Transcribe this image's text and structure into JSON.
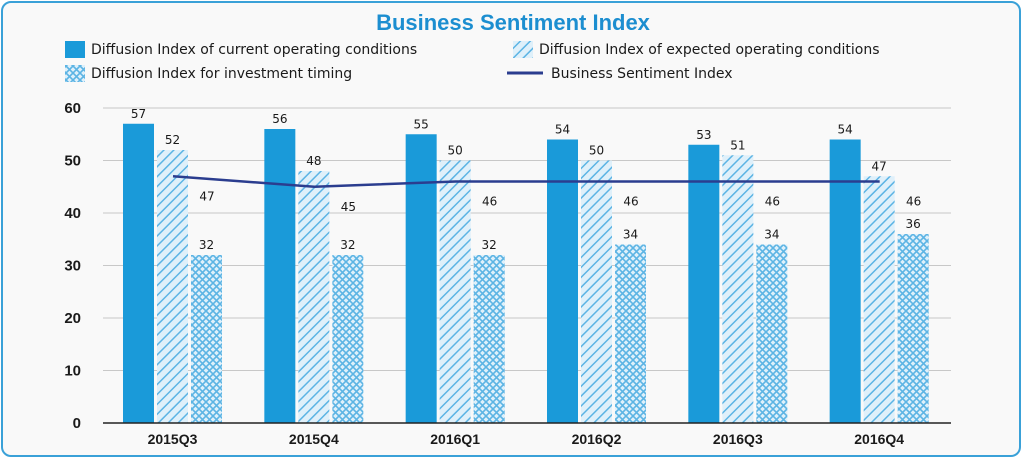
{
  "colors": {
    "frame": "#3aa1d8",
    "current": "#1a9ad9",
    "hatch": "#5cb4e4",
    "hatch_bg": "#dff0fa",
    "line": "#2b3d8f",
    "grid": "#c8c8c8",
    "title": "#1c8ed0"
  },
  "chart_data": {
    "type": "bar",
    "title": "Business Sentiment Index",
    "xlabel": "",
    "ylabel": "",
    "ylim": [
      0,
      60
    ],
    "yticks": [
      0,
      10,
      20,
      30,
      40,
      50,
      60
    ],
    "grid": true,
    "legend_position": "top",
    "categories": [
      "2015Q3",
      "2015Q4",
      "2016Q1",
      "2016Q2",
      "2016Q3",
      "2016Q4"
    ],
    "series": [
      {
        "name": "Diffusion Index of current operating conditions",
        "type": "bar",
        "fill": "solid",
        "values": [
          57,
          56,
          55,
          54,
          53,
          54
        ]
      },
      {
        "name": "Diffusion Index of expected operating conditions",
        "type": "bar",
        "fill": "diagonal",
        "values": [
          52,
          48,
          50,
          50,
          51,
          47
        ]
      },
      {
        "name": "Diffusion Index for investment timing",
        "type": "bar",
        "fill": "crosshatch",
        "values": [
          32,
          32,
          32,
          34,
          34,
          36
        ]
      },
      {
        "name": "Business Sentiment Index",
        "type": "line",
        "values": [
          47,
          45,
          46,
          46,
          46,
          46
        ]
      }
    ]
  }
}
